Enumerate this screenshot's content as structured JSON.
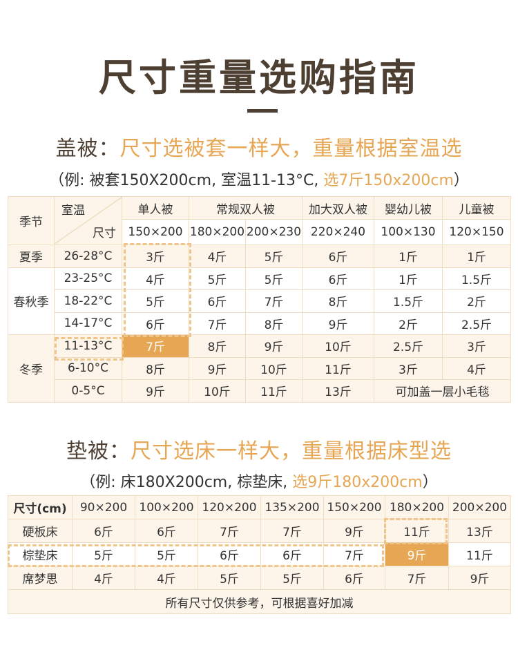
{
  "page_title": "尺寸重量选购指南",
  "quilt": {
    "heading_dark": "盖被：",
    "heading_orange": "尺寸选被套一样大，重量根据室温选",
    "example_prefix": "（例: 被套150X200cm, 室温11-13°C, ",
    "example_highlight": "选7斤150x200cm",
    "example_suffix": "）",
    "corner_label": "季节",
    "diag_top": "室温",
    "diag_bottom": "尺寸",
    "types": [
      "单人被",
      "常规双人被",
      "加大双人被",
      "婴幼儿被",
      "儿童被"
    ],
    "sizes": [
      "150×200",
      "180×200",
      "200×230",
      "220×240",
      "100×130",
      "120×150"
    ],
    "seasons": [
      "夏季",
      "春秋季",
      "冬季"
    ],
    "rows": [
      {
        "temp": "26-28°C",
        "w": [
          "3斤",
          "4斤",
          "5斤",
          "6斤",
          "1斤",
          "1斤"
        ]
      },
      {
        "temp": "23-25°C",
        "w": [
          "4斤",
          "5斤",
          "5斤",
          "6斤",
          "1斤",
          "1.5斤"
        ]
      },
      {
        "temp": "18-22°C",
        "w": [
          "5斤",
          "6斤",
          "7斤",
          "8斤",
          "1.5斤",
          "2斤"
        ]
      },
      {
        "temp": "14-17°C",
        "w": [
          "6斤",
          "7斤",
          "8斤",
          "9斤",
          "2斤",
          "2.5斤"
        ]
      },
      {
        "temp": "11-13°C",
        "w": [
          "7斤",
          "8斤",
          "9斤",
          "10斤",
          "2.5斤",
          "3斤"
        ]
      },
      {
        "temp": "6-10°C",
        "w": [
          "8斤",
          "9斤",
          "10斤",
          "11斤",
          "3斤",
          "4斤"
        ]
      },
      {
        "temp": "0-5°C",
        "w": [
          "9斤",
          "10斤",
          "11斤",
          "13斤"
        ],
        "note": "可加盖一层小毛毯"
      }
    ]
  },
  "mattress": {
    "heading_dark": "垫被：",
    "heading_orange": "尺寸选床一样大，重量根据床型选",
    "example_prefix": "（例: 床180X200cm, 棕垫床, ",
    "example_highlight": "选9斤180x200cm",
    "example_suffix": "）",
    "size_label": "尺寸(cm)",
    "sizes": [
      "90×200",
      "100×200",
      "120×200",
      "135×200",
      "150×200",
      "180×200",
      "200×200"
    ],
    "rows": [
      {
        "type": "硬板床",
        "w": [
          "6斤",
          "6斤",
          "7斤",
          "7斤",
          "9斤",
          "11斤",
          "13斤"
        ]
      },
      {
        "type": "棕垫床",
        "w": [
          "5斤",
          "5斤",
          "6斤",
          "6斤",
          "7斤",
          "9斤",
          "11斤"
        ]
      },
      {
        "type": "席梦思",
        "w": [
          "4斤",
          "4斤",
          "5斤",
          "5斤",
          "6斤",
          "7斤",
          "9斤"
        ]
      }
    ],
    "footnote": "所有尺寸仅供参考，可根据喜好加减"
  },
  "colors": {
    "accent": "#e6a653",
    "heading": "#4e3f33",
    "tint": "#fdf5ea",
    "border": "#f0dcc0",
    "dash": "#f0c58a"
  }
}
